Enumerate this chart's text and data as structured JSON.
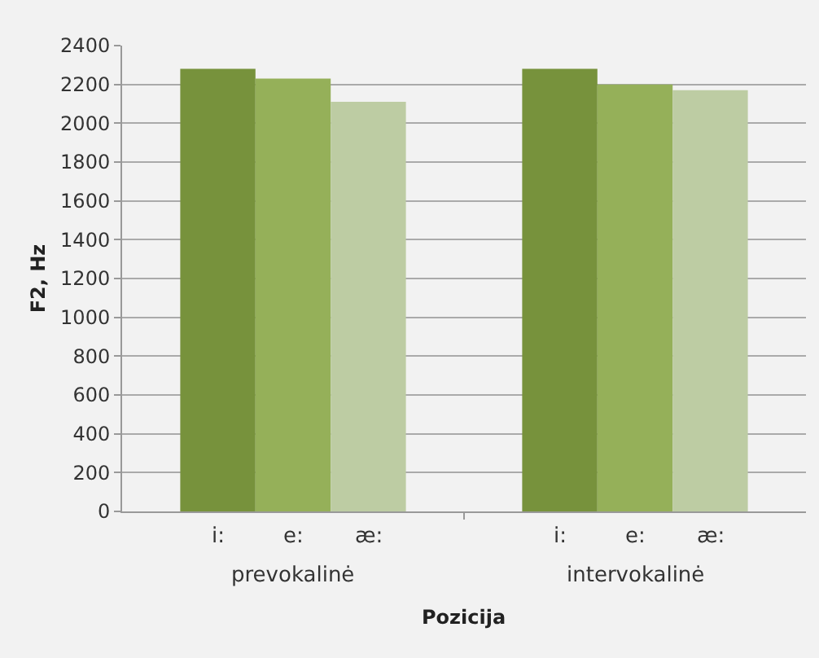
{
  "chart_data": {
    "type": "bar",
    "xlabel": "Pozicija",
    "ylabel": "F2, Hz",
    "categories": [
      "prevokalinė",
      "intervokalinė"
    ],
    "series": [
      {
        "name": "i:",
        "color": "#77923c",
        "values": [
          2280,
          2280
        ]
      },
      {
        "name": "e:",
        "color": "#95b059",
        "values": [
          2230,
          2200
        ]
      },
      {
        "name": "æ:",
        "color": "#bdcca3",
        "values": [
          2110,
          2170
        ]
      }
    ],
    "ylim": [
      0,
      2400
    ],
    "yticks": [
      0,
      200,
      400,
      600,
      800,
      1000,
      1200,
      1400,
      1600,
      1800,
      2000,
      2200,
      2400
    ],
    "grid": "y",
    "legend": false
  }
}
